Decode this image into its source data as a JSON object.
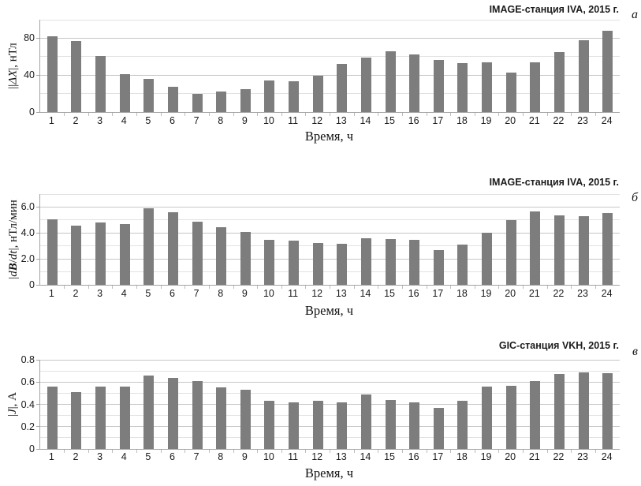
{
  "chart_data": [
    {
      "type": "bar",
      "panel": "a",
      "corner_label": "а",
      "title": "IMAGE-станция IVA, 2015 г.",
      "xlabel": "Время, ч",
      "ylabel": "|ΔX|, нТл",
      "ylabel_segments": [
        {
          "text": "||"
        },
        {
          "text": "ΔX",
          "italic": true
        },
        {
          "text": "|, нТл"
        }
      ],
      "categories": [
        "1",
        "2",
        "3",
        "4",
        "5",
        "6",
        "7",
        "8",
        "9",
        "10",
        "11",
        "12",
        "13",
        "14",
        "15",
        "16",
        "17",
        "18",
        "19",
        "20",
        "21",
        "22",
        "23",
        "24"
      ],
      "values": [
        82,
        77,
        61,
        41,
        36,
        27,
        20,
        22,
        25,
        34,
        33,
        39,
        52,
        59,
        66,
        62,
        56,
        53,
        54,
        43,
        54,
        65,
        78,
        88
      ],
      "ylim": [
        0,
        100
      ],
      "yticks": [
        {
          "v": 0,
          "label": "0"
        },
        {
          "v": 40,
          "label": "40"
        },
        {
          "v": 80,
          "label": "80"
        }
      ],
      "gridlines_major": [
        40,
        80
      ],
      "gridlines_minor": [
        20,
        60,
        100
      ],
      "bar_color": "#7d7d7d",
      "legend": "none",
      "grid": "on"
    },
    {
      "type": "bar",
      "panel": "b",
      "corner_label": "б",
      "title": "IMAGE-станция IVA, 2015 г.",
      "xlabel": "Время, ч",
      "ylabel": "|dB/dt|, нТл/мин",
      "ylabel_segments": [
        {
          "text": "|"
        },
        {
          "text": "d",
          "italic": true
        },
        {
          "text": "B",
          "italic": true,
          "bold": true
        },
        {
          "text": "/"
        },
        {
          "text": "dt",
          "italic": true
        },
        {
          "text": "|, нТл/мин"
        }
      ],
      "categories": [
        "1",
        "2",
        "3",
        "4",
        "5",
        "6",
        "7",
        "8",
        "9",
        "10",
        "11",
        "12",
        "13",
        "14",
        "15",
        "16",
        "17",
        "18",
        "19",
        "20",
        "21",
        "22",
        "23",
        "24"
      ],
      "values": [
        5.05,
        4.55,
        4.8,
        4.7,
        5.9,
        5.6,
        4.9,
        4.45,
        4.1,
        3.5,
        3.4,
        3.2,
        3.15,
        3.6,
        3.55,
        3.45,
        2.65,
        3.1,
        4.0,
        5.0,
        5.65,
        5.35,
        5.3,
        5.55
      ],
      "ylim": [
        0,
        7
      ],
      "yticks": [
        {
          "v": 0,
          "label": "0"
        },
        {
          "v": 2,
          "label": "2.0"
        },
        {
          "v": 4,
          "label": "4.0"
        },
        {
          "v": 6,
          "label": "6.0"
        }
      ],
      "gridlines_major": [
        2,
        4,
        6
      ],
      "gridlines_minor": [
        1,
        3,
        5,
        7
      ],
      "bar_color": "#7d7d7d",
      "legend": "none",
      "grid": "on"
    },
    {
      "type": "bar",
      "panel": "c",
      "corner_label": "в",
      "title": "GIC-станция VKH, 2015 г.",
      "xlabel": "Время, ч",
      "ylabel": "|J|, А",
      "ylabel_segments": [
        {
          "text": "|"
        },
        {
          "text": "J",
          "italic": true
        },
        {
          "text": "|, А"
        }
      ],
      "categories": [
        "1",
        "2",
        "3",
        "4",
        "5",
        "6",
        "7",
        "8",
        "9",
        "10",
        "11",
        "12",
        "13",
        "14",
        "15",
        "16",
        "17",
        "18",
        "19",
        "20",
        "21",
        "22",
        "23",
        "24"
      ],
      "values": [
        0.56,
        0.51,
        0.56,
        0.56,
        0.66,
        0.64,
        0.61,
        0.55,
        0.53,
        0.43,
        0.42,
        0.43,
        0.42,
        0.49,
        0.44,
        0.42,
        0.37,
        0.43,
        0.56,
        0.57,
        0.61,
        0.67,
        0.69,
        0.68
      ],
      "ylim": [
        0,
        0.8
      ],
      "yticks": [
        {
          "v": 0,
          "label": "0"
        },
        {
          "v": 0.2,
          "label": "0.2"
        },
        {
          "v": 0.4,
          "label": "0.4"
        },
        {
          "v": 0.6,
          "label": "0.6"
        },
        {
          "v": 0.8,
          "label": "0.8"
        }
      ],
      "gridlines_major": [
        0.2,
        0.4,
        0.6,
        0.8
      ],
      "gridlines_minor": [
        0.1,
        0.3,
        0.5,
        0.7
      ],
      "bar_color": "#7d7d7d",
      "legend": "none",
      "grid": "on"
    }
  ],
  "colors": {
    "bar": "#7d7d7d",
    "axis": "#a3a3a3",
    "grid_major": "#c6c6c6",
    "grid_minor": "#e2e2e2",
    "text": "#1a1a1a",
    "background": "#ffffff"
  }
}
